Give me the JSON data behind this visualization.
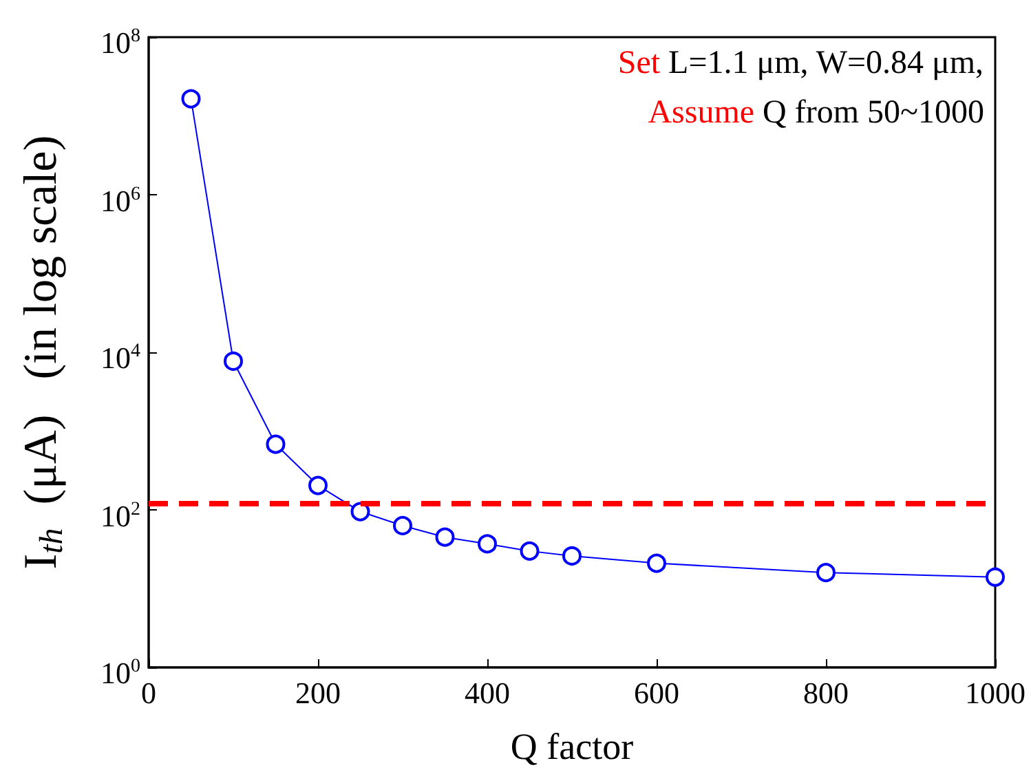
{
  "chart_data": {
    "type": "line",
    "xlabel": "Q factor",
    "ylabel": "I$_{th}$  (μA)   (in log scale)",
    "x": [
      50,
      100,
      150,
      200,
      250,
      300,
      350,
      400,
      450,
      500,
      600,
      800,
      1000
    ],
    "series": [
      {
        "color": "#0000ff",
        "values": [
          16500000,
          7700,
          680,
          204,
          95,
          63,
          45,
          37,
          30,
          26,
          21,
          16,
          14
        ]
      }
    ],
    "marker": "circle",
    "line_style": "solid",
    "log": "y",
    "xlim": [
      0,
      1000
    ],
    "xticks": [
      0,
      200,
      400,
      600,
      800,
      1000
    ],
    "ylim": [
      1,
      100000000
    ],
    "yticks": [
      {
        "value": 1,
        "label": "10$^{0}$"
      },
      {
        "value": 100,
        "label": "10$^{2}$"
      },
      {
        "value": 10000,
        "label": "10$^{4}$"
      },
      {
        "value": 1000000,
        "label": "10$^{6}$"
      },
      {
        "value": 100000000,
        "label": "10$^{8}$"
      }
    ],
    "ref_lines": [
      {
        "axis": "y",
        "value": 120,
        "color": "#ff0000",
        "line_style": "dashed"
      }
    ],
    "annotations": [
      "Set L=1.1 μm, W=0.84 μm,",
      "Assume Q from 50~1000"
    ]
  }
}
